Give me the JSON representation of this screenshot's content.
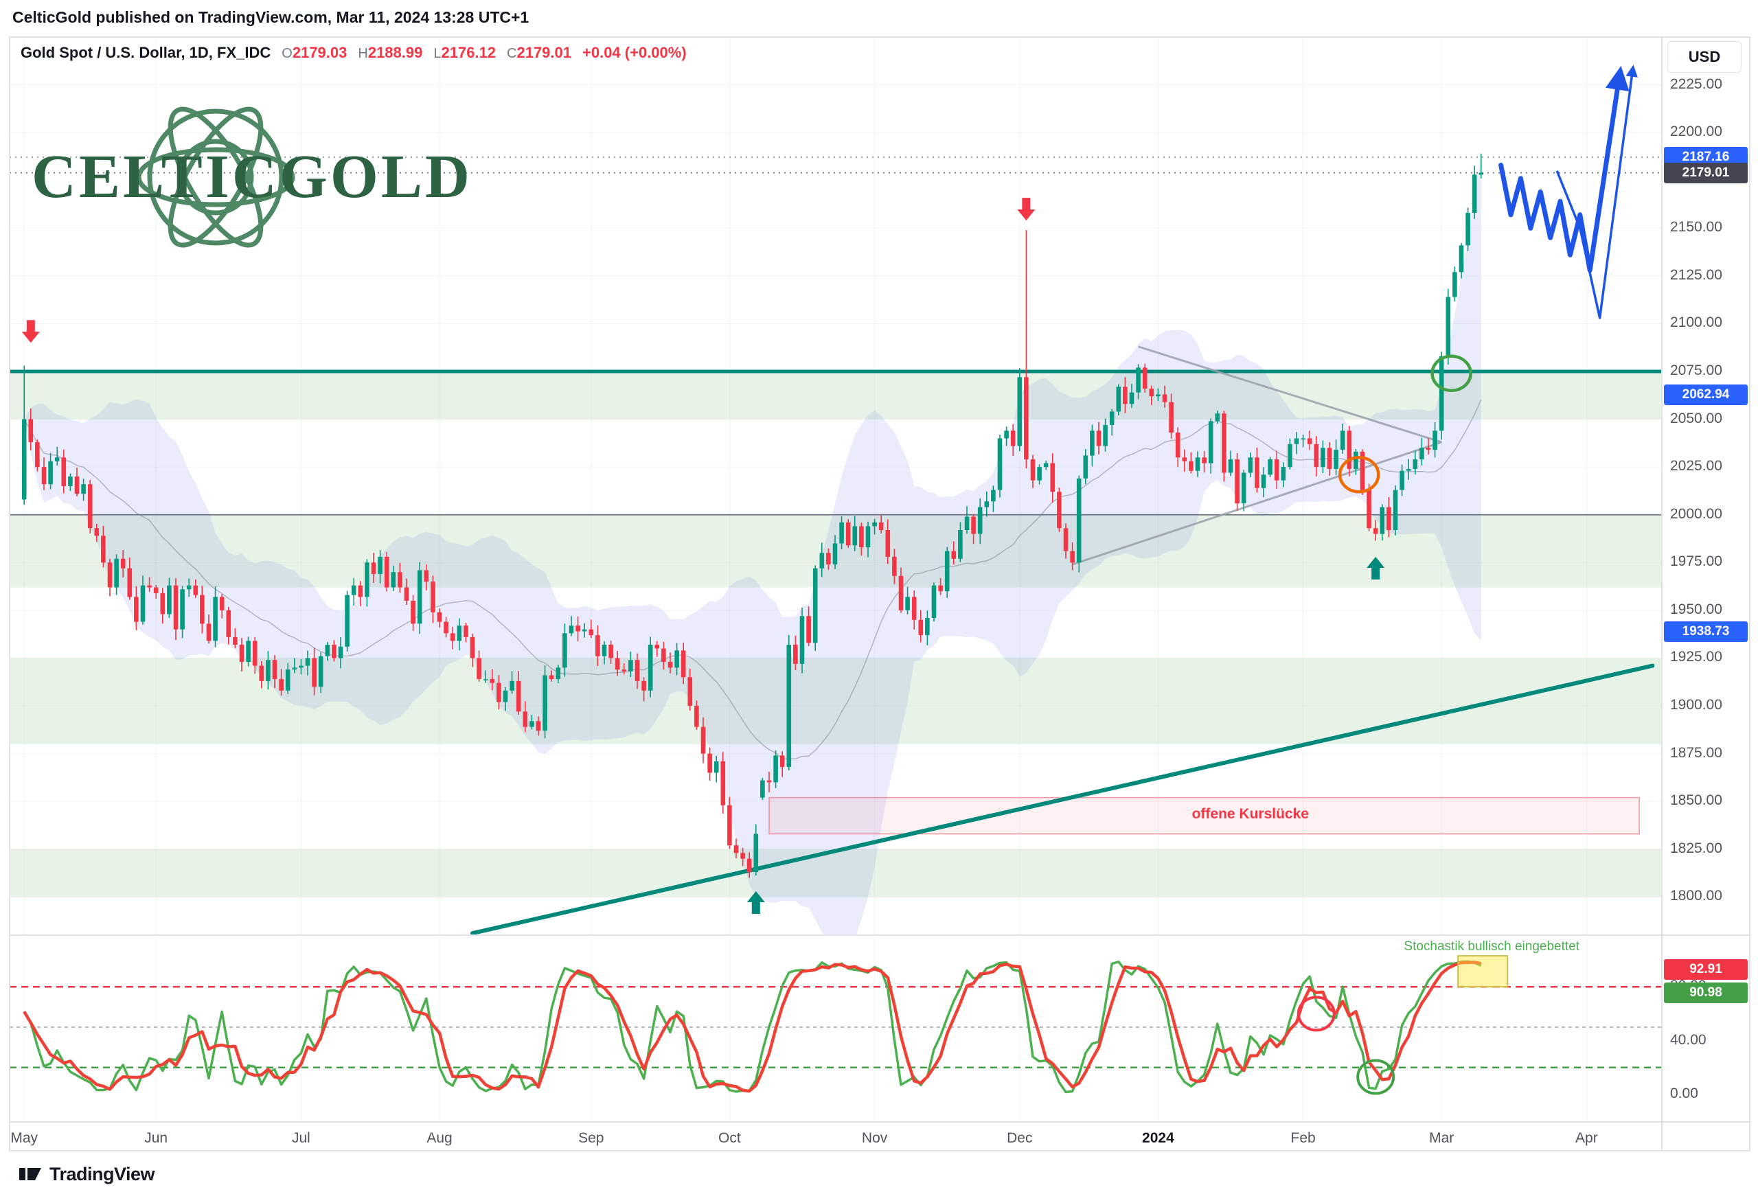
{
  "header": {
    "published_line": "CelticGold published on TradingView.com, Mar 11, 2024 13:28 UTC+1"
  },
  "chart": {
    "legend": {
      "title": "Gold Spot / U.S. Dollar, 1D, FX_IDC",
      "ohlc": [
        {
          "label": "O",
          "value": "2179.03"
        },
        {
          "label": "H",
          "value": "2188.99"
        },
        {
          "label": "L",
          "value": "2176.12"
        },
        {
          "label": "C",
          "value": "2179.01"
        }
      ],
      "change": "+0.04 (+0.00%)"
    },
    "watermark": "CELTICGOLD",
    "currency_button": "USD"
  },
  "price_axis": {
    "ticks": [
      2225,
      2200,
      2150,
      2125,
      2100,
      2075,
      2050,
      2025,
      2000,
      1975,
      1950,
      1925,
      1900,
      1875,
      1850,
      1825,
      1800
    ],
    "badges": [
      {
        "value": "2187.16",
        "price": 2187.16,
        "bg": "#2962ff"
      },
      {
        "value": "2179.01",
        "price": 2179.01,
        "bg": "#434651"
      },
      {
        "value": "2062.94",
        "price": 2062.94,
        "bg": "#2962ff"
      },
      {
        "value": "1938.73",
        "price": 1938.73,
        "bg": "#2962ff"
      }
    ]
  },
  "stoch_axis": {
    "badges": [
      {
        "value": "92.91",
        "bg": "#f23645"
      },
      {
        "value": "90.98",
        "bg": "#43a047"
      }
    ]
  },
  "footer": {
    "brand": "TradingView"
  },
  "colors": {
    "up": "#089981",
    "down": "#f23645",
    "teal": "#00897b",
    "band": "rgba(67,160,71,0.13)",
    "cloud": "rgba(98,112,222,0.13)",
    "gap_fill": "rgba(242,54,69,0.07)",
    "gap_stroke": "rgba(242,54,69,0.5)",
    "blue": "#1f55e6",
    "stoch_red": "#ef4136",
    "stoch_green": "#4caf50",
    "badge_blue": "#2962ff",
    "badge_gray": "#434651"
  },
  "chart_data": {
    "type": "candlestick",
    "title": "Gold Spot / U.S. Dollar, 1D, FX_IDC",
    "symbol": "Gold Spot / U.S. Dollar",
    "interval": "1D",
    "exchange": "FX_IDC",
    "ylim": [
      1780,
      2250
    ],
    "x_labels": [
      {
        "text": "May",
        "slot": 0
      },
      {
        "text": "Jun",
        "slot": 20
      },
      {
        "text": "Jul",
        "slot": 42
      },
      {
        "text": "Aug",
        "slot": 63
      },
      {
        "text": "Sep",
        "slot": 86
      },
      {
        "text": "Oct",
        "slot": 107
      },
      {
        "text": "Nov",
        "slot": 129
      },
      {
        "text": "Dec",
        "slot": 151
      },
      {
        "text": "2024",
        "slot": 172,
        "bold": true
      },
      {
        "text": "Feb",
        "slot": 194
      },
      {
        "text": "Mar",
        "slot": 215
      },
      {
        "text": "Apr",
        "slot": 237
      }
    ],
    "candles": {
      "closes": [
        2050,
        2038,
        2025,
        2016,
        2028,
        2030,
        2015,
        2020,
        2011,
        2016,
        1993,
        1989,
        1975,
        1962,
        1977,
        1972,
        1957,
        1944,
        1963,
        1962,
        1959,
        1948,
        1963,
        1940,
        1961,
        1963,
        1958,
        1943,
        1934,
        1957,
        1950,
        1936,
        1932,
        1923,
        1934,
        1921,
        1913,
        1924,
        1914,
        1908,
        1919,
        1920,
        1921,
        1925,
        1910,
        1926,
        1932,
        1925,
        1931,
        1958,
        1963,
        1957,
        1975,
        1969,
        1978,
        1962,
        1970,
        1962,
        1955,
        1943,
        1971,
        1965,
        1949,
        1944,
        1938,
        1934,
        1942,
        1936,
        1925,
        1914,
        1914,
        1912,
        1902,
        1908,
        1913,
        1897,
        1889,
        1892,
        1887,
        1916,
        1914,
        1920,
        1938,
        1942,
        1939,
        1940,
        1937,
        1926,
        1932,
        1925,
        1919,
        1918,
        1924,
        1913,
        1908,
        1932,
        1930,
        1923,
        1920,
        1929,
        1915,
        1900,
        1889,
        1875,
        1865,
        1871,
        1848,
        1827,
        1823,
        1820,
        1813,
        1833,
        1861,
        1860,
        1874,
        1868,
        1932,
        1922,
        1947,
        1933,
        1972,
        1980,
        1974,
        1985,
        1996,
        1984,
        1994,
        1983,
        1994,
        1996,
        1992,
        1978,
        1968,
        1950,
        1957,
        1945,
        1937,
        1946,
        1963,
        1960,
        1981,
        1977,
        1992,
        1999,
        1990,
        2004,
        2007,
        2013,
        2040,
        2044,
        2036,
        2072,
        2029,
        2018,
        2025,
        2027,
        2012,
        1993,
        1981,
        1975,
        2019,
        2031,
        2044,
        2036,
        2047,
        2054,
        2067,
        2058,
        2064,
        2077,
        2066,
        2062,
        2063,
        2059,
        2043,
        2030,
        2028,
        2023,
        2030,
        2027,
        2049,
        2053,
        2022,
        2029,
        2006,
        2022,
        2030,
        2014,
        2021,
        2029,
        2018,
        2025,
        2037,
        2040,
        2040,
        2037,
        2025,
        2035,
        2024,
        2034,
        2044,
        2024,
        2033,
        2013,
        1993,
        1990,
        2004,
        1992,
        2013,
        2023,
        2024,
        2029,
        2035,
        2034,
        2044,
        2083,
        2114,
        2127,
        2141,
        2158,
        2178,
        2179
      ],
      "open_overrides": {
        "0": 2008,
        "112": 1852
      },
      "high_overrides": {
        "0": 2078,
        "152": 2149,
        "221": 2189
      },
      "low_overrides": {
        "110": 1810,
        "221": 2176
      }
    },
    "levels": {
      "teal_line": 2075,
      "gray_line": 2000,
      "dotted": [
        {
          "price": 2187.16,
          "color": "#9598a1"
        },
        {
          "price": 2179.01,
          "color": "#787b86"
        }
      ]
    },
    "support_zones": [
      [
        2050,
        2075
      ],
      [
        1962,
        2000
      ],
      [
        1880,
        1925
      ],
      [
        1800,
        1825
      ]
    ],
    "gap_box": {
      "label": "offene Kurslücke",
      "from_slot": 113,
      "to_slot": 245,
      "price_top": 1852,
      "price_bottom": 1833
    },
    "trendline": {
      "from": [
        68,
        1781
      ],
      "to": [
        247,
        1921
      ]
    },
    "triangle": [
      {
        "from": [
          169,
          2088
        ],
        "to": [
          215,
          2038
        ]
      },
      {
        "from": [
          159,
          1974
        ],
        "to": [
          215,
          2038
        ]
      }
    ],
    "arrows": {
      "down": [
        {
          "slot": 1,
          "price": 2090
        },
        {
          "slot": 152,
          "price": 2154
        }
      ],
      "up": [
        {
          "slot": 111,
          "price": 1803
        },
        {
          "slot": 205,
          "price": 1978
        }
      ]
    },
    "circles": {
      "price": [
        {
          "slot": 216.5,
          "price": 2074,
          "color": "#43a047"
        },
        {
          "slot": 202.5,
          "price": 2021,
          "color": "#ef6c00"
        }
      ]
    },
    "projections": {
      "bold": [
        [
          224,
          2183
        ],
        [
          225.5,
          2157
        ],
        [
          227,
          2176
        ],
        [
          228.5,
          2150
        ],
        [
          230,
          2169
        ],
        [
          231.5,
          2145
        ],
        [
          233,
          2164
        ],
        [
          234.5,
          2136
        ],
        [
          236,
          2157
        ],
        [
          237.5,
          2128
        ],
        [
          242,
          2230
        ]
      ],
      "thin": [
        [
          232.5,
          2180
        ],
        [
          236,
          2150
        ],
        [
          239,
          2103
        ],
        [
          244,
          2233
        ]
      ]
    },
    "stochastic": {
      "note": "Stochastik bullisch eingebettet",
      "lookback": 12,
      "smooth_fast": 2,
      "smooth_slow": 4,
      "levels": {
        "upper": 80,
        "mid": 50,
        "lower": 20
      },
      "ticks": [
        80,
        40,
        0
      ],
      "red_value": "92.91",
      "green_value": "90.98",
      "circles": [
        {
          "slot": 196,
          "value": 60,
          "color": "#f23645"
        },
        {
          "slot": 205,
          "value": 13,
          "color": "#43a047"
        }
      ],
      "highlight_box": {
        "from_slot": 217.5,
        "to_slot": 225,
        "top": 103,
        "bottom": 80
      }
    }
  }
}
